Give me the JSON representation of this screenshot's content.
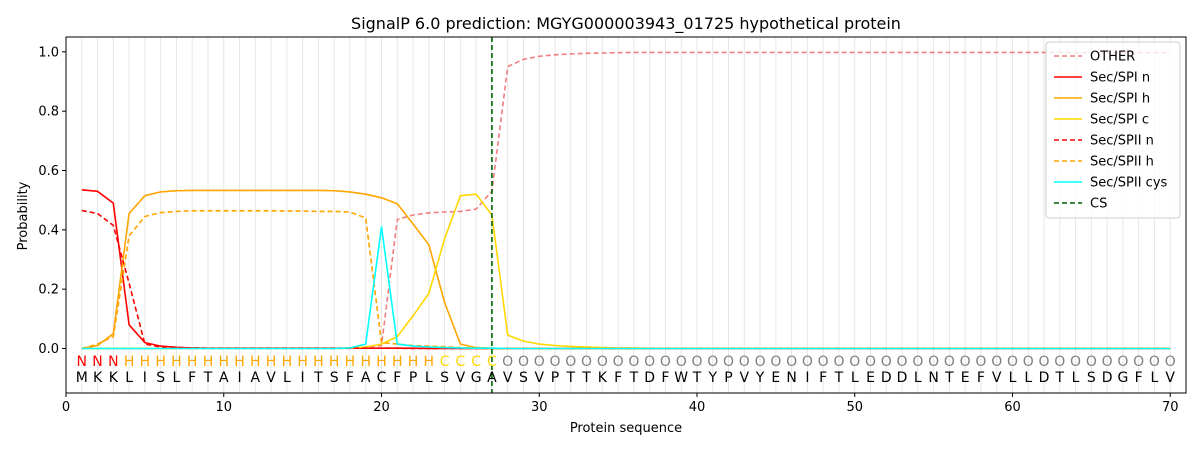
{
  "chart_data": {
    "type": "line",
    "title": "SignalP 6.0 prediction: MGYG000003943_01725 hypothetical protein",
    "xlabel": "Protein sequence",
    "ylabel": "Probability",
    "xlim": [
      0,
      71
    ],
    "ylim": [
      -0.15,
      1.05
    ],
    "x_ticks": [
      0,
      10,
      20,
      30,
      40,
      50,
      60,
      70
    ],
    "y_ticks": [
      0.0,
      0.2,
      0.4,
      0.6,
      0.8,
      1.0
    ],
    "x_tick_labels": [
      "0",
      "10",
      "20",
      "30",
      "40",
      "50",
      "60",
      "70"
    ],
    "y_tick_labels": [
      "0.0",
      "0.2",
      "0.4",
      "0.6",
      "0.8",
      "1.0"
    ],
    "legend_position": "top-right",
    "sequence": [
      "M",
      "K",
      "K",
      "L",
      "I",
      "S",
      "L",
      "F",
      "T",
      "A",
      "I",
      "A",
      "V",
      "L",
      "I",
      "T",
      "S",
      "F",
      "A",
      "C",
      "F",
      "P",
      "L",
      "S",
      "V",
      "G",
      "A",
      "V",
      "S",
      "V",
      "P",
      "T",
      "T",
      "K",
      "F",
      "T",
      "D",
      "F",
      "W",
      "T",
      "Y",
      "P",
      "V",
      "Y",
      "E",
      "N",
      "I",
      "F",
      "T",
      "L",
      "E",
      "D",
      "D",
      "L",
      "N",
      "T",
      "E",
      "F",
      "V",
      "L",
      "L",
      "D",
      "T",
      "L",
      "S",
      "D",
      "G",
      "F",
      "L",
      "V"
    ],
    "labels": [
      "N",
      "N",
      "N",
      "H",
      "H",
      "H",
      "H",
      "H",
      "H",
      "H",
      "H",
      "H",
      "H",
      "H",
      "H",
      "H",
      "H",
      "H",
      "H",
      "H",
      "H",
      "H",
      "H",
      "C",
      "C",
      "C",
      "C",
      "O",
      "O",
      "O",
      "O",
      "O",
      "O",
      "O",
      "O",
      "O",
      "O",
      "O",
      "O",
      "O",
      "O",
      "O",
      "O",
      "O",
      "O",
      "O",
      "O",
      "O",
      "O",
      "O",
      "O",
      "O",
      "O",
      "O",
      "O",
      "O",
      "O",
      "O",
      "O",
      "O",
      "O",
      "O",
      "O",
      "O",
      "O",
      "O",
      "O",
      "O",
      "O",
      "O"
    ],
    "label_colors": {
      "N": "#ff0000",
      "H": "#ffa500",
      "C": "#ffd700",
      "O": "#808080"
    },
    "cleavage_site": 27,
    "series": [
      {
        "name": "OTHER",
        "color": "#f08080",
        "dash": "dashed",
        "values": [
          0.0,
          0.0,
          0.0,
          0.0,
          0.0,
          0.0,
          0.0,
          0.0,
          0.0,
          0.0,
          0.0,
          0.0,
          0.0,
          0.0,
          0.0,
          0.0,
          0.0,
          0.0,
          0.005,
          0.01,
          0.435,
          0.45,
          0.457,
          0.46,
          0.462,
          0.47,
          0.53,
          0.95,
          0.975,
          0.985,
          0.99,
          0.993,
          0.995,
          0.996,
          0.997,
          0.998,
          0.998,
          0.998,
          0.998,
          0.998,
          0.998,
          0.998,
          0.998,
          0.998,
          0.998,
          0.998,
          0.998,
          0.998,
          0.998,
          0.998,
          0.998,
          0.998,
          0.998,
          0.998,
          0.998,
          0.998,
          0.998,
          0.998,
          0.998,
          0.998,
          0.998,
          0.998,
          0.998,
          0.997,
          0.997,
          0.997,
          0.997,
          0.997,
          0.997,
          0.997
        ]
      },
      {
        "name": "Sec/SPI n",
        "color": "#ff0000",
        "dash": "solid",
        "values": [
          0.535,
          0.53,
          0.49,
          0.08,
          0.02,
          0.008,
          0.004,
          0.002,
          0.001,
          0.001,
          0.001,
          0.001,
          0.001,
          0.001,
          0.001,
          0.001,
          0.001,
          0.001,
          0.001,
          0.001,
          0.001,
          0.001,
          0.0,
          0.0,
          0.0,
          0.0,
          0.0,
          0.0,
          0.0,
          0.0,
          0.0,
          0.0,
          0.0,
          0.0,
          0.0,
          0.0,
          0.0,
          0.0,
          0.0,
          0.0,
          0.0,
          0.0,
          0.0,
          0.0,
          0.0,
          0.0,
          0.0,
          0.0,
          0.0,
          0.0,
          0.0,
          0.0,
          0.0,
          0.0,
          0.0,
          0.0,
          0.0,
          0.0,
          0.0,
          0.0,
          0.0,
          0.0,
          0.0,
          0.0,
          0.0,
          0.0,
          0.0,
          0.0,
          0.0,
          0.0
        ]
      },
      {
        "name": "Sec/SPI h",
        "color": "#ffa500",
        "dash": "solid",
        "values": [
          0.0,
          0.01,
          0.05,
          0.455,
          0.515,
          0.528,
          0.532,
          0.533,
          0.533,
          0.533,
          0.533,
          0.533,
          0.533,
          0.533,
          0.533,
          0.533,
          0.532,
          0.528,
          0.52,
          0.508,
          0.488,
          0.42,
          0.35,
          0.155,
          0.015,
          0.003,
          0.001,
          0.0,
          0.0,
          0.0,
          0.0,
          0.0,
          0.0,
          0.0,
          0.0,
          0.0,
          0.0,
          0.0,
          0.0,
          0.0,
          0.0,
          0.0,
          0.0,
          0.0,
          0.0,
          0.0,
          0.0,
          0.0,
          0.0,
          0.0,
          0.0,
          0.0,
          0.0,
          0.0,
          0.0,
          0.0,
          0.0,
          0.0,
          0.0,
          0.0,
          0.0,
          0.0,
          0.0,
          0.0,
          0.0,
          0.0,
          0.0,
          0.0,
          0.0,
          0.0
        ]
      },
      {
        "name": "Sec/SPI c",
        "color": "#ffd700",
        "dash": "solid",
        "values": [
          0.0,
          0.0,
          0.0,
          0.0,
          0.0,
          0.0,
          0.0,
          0.0,
          0.0,
          0.0,
          0.0,
          0.0,
          0.0,
          0.0,
          0.0,
          0.0,
          0.0,
          0.002,
          0.005,
          0.015,
          0.04,
          0.11,
          0.185,
          0.37,
          0.515,
          0.52,
          0.45,
          0.045,
          0.025,
          0.015,
          0.01,
          0.007,
          0.005,
          0.003,
          0.002,
          0.002,
          0.001,
          0.001,
          0.001,
          0.001,
          0.001,
          0.001,
          0.001,
          0.001,
          0.001,
          0.001,
          0.001,
          0.001,
          0.001,
          0.001,
          0.001,
          0.001,
          0.001,
          0.001,
          0.001,
          0.001,
          0.001,
          0.001,
          0.001,
          0.001,
          0.001,
          0.001,
          0.001,
          0.001,
          0.001,
          0.001,
          0.001,
          0.001,
          0.001,
          0.001
        ]
      },
      {
        "name": "Sec/SPII n",
        "color": "#ff0000",
        "dash": "dashed",
        "values": [
          0.465,
          0.455,
          0.415,
          0.22,
          0.015,
          0.005,
          0.003,
          0.002,
          0.001,
          0.001,
          0.001,
          0.001,
          0.001,
          0.001,
          0.001,
          0.001,
          0.001,
          0.001,
          0.001,
          0.001,
          0.001,
          0.0,
          0.0,
          0.0,
          0.0,
          0.0,
          0.0,
          0.0,
          0.0,
          0.0,
          0.0,
          0.0,
          0.0,
          0.0,
          0.0,
          0.0,
          0.0,
          0.0,
          0.0,
          0.0,
          0.0,
          0.0,
          0.0,
          0.0,
          0.0,
          0.0,
          0.0,
          0.0,
          0.0,
          0.0,
          0.0,
          0.0,
          0.0,
          0.0,
          0.0,
          0.0,
          0.0,
          0.0,
          0.0,
          0.0,
          0.0,
          0.0,
          0.0,
          0.0,
          0.0,
          0.0,
          0.0,
          0.0,
          0.0,
          0.0
        ]
      },
      {
        "name": "Sec/SPII h",
        "color": "#ffa500",
        "dash": "dashed",
        "values": [
          0.0,
          0.015,
          0.04,
          0.38,
          0.445,
          0.458,
          0.462,
          0.464,
          0.464,
          0.464,
          0.464,
          0.464,
          0.464,
          0.463,
          0.463,
          0.462,
          0.462,
          0.46,
          0.44,
          0.02,
          0.015,
          0.01,
          0.008,
          0.006,
          0.003,
          0.001,
          0.0,
          0.0,
          0.0,
          0.0,
          0.0,
          0.0,
          0.0,
          0.0,
          0.0,
          0.0,
          0.0,
          0.0,
          0.0,
          0.0,
          0.0,
          0.0,
          0.0,
          0.0,
          0.0,
          0.0,
          0.0,
          0.0,
          0.0,
          0.0,
          0.0,
          0.0,
          0.0,
          0.0,
          0.0,
          0.0,
          0.0,
          0.0,
          0.0,
          0.0,
          0.0,
          0.0,
          0.0,
          0.0,
          0.0,
          0.0,
          0.0,
          0.0,
          0.0,
          0.0
        ]
      },
      {
        "name": "Sec/SPII cys",
        "color": "#00ffff",
        "dash": "solid",
        "values": [
          0.0,
          0.0,
          0.0,
          0.0,
          0.0,
          0.0,
          0.0,
          0.0,
          0.0,
          0.0,
          0.0,
          0.0,
          0.0,
          0.0,
          0.0,
          0.0,
          0.0,
          0.002,
          0.015,
          0.41,
          0.015,
          0.008,
          0.005,
          0.003,
          0.002,
          0.001,
          0.001,
          0.0,
          0.0,
          0.0,
          0.0,
          0.0,
          0.0,
          0.0,
          0.0,
          0.0,
          0.0,
          0.0,
          0.0,
          0.0,
          0.0,
          0.0,
          0.0,
          0.0,
          0.0,
          0.0,
          0.0,
          0.0,
          0.0,
          0.0,
          0.0,
          0.0,
          0.0,
          0.0,
          0.0,
          0.0,
          0.0,
          0.0,
          0.0,
          0.0,
          0.0,
          0.0,
          0.0,
          0.0,
          0.0,
          0.0,
          0.0,
          0.0,
          0.0,
          0.0
        ]
      }
    ],
    "cs_legend": {
      "name": "CS",
      "color": "#006400",
      "dash": "dashed"
    }
  }
}
